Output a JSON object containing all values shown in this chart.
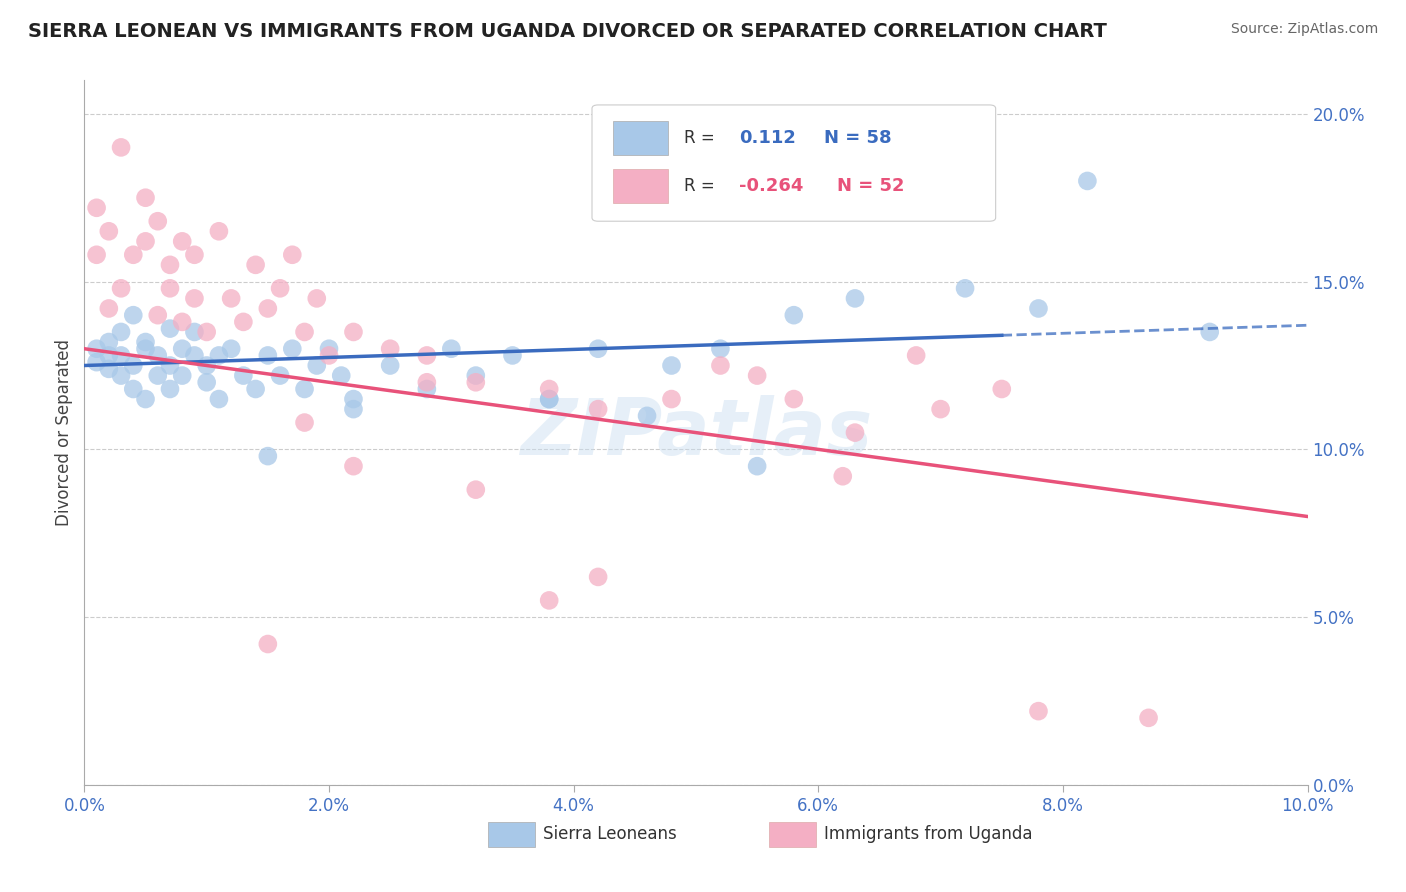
{
  "title": "SIERRA LEONEAN VS IMMIGRANTS FROM UGANDA DIVORCED OR SEPARATED CORRELATION CHART",
  "source": "Source: ZipAtlas.com",
  "ylabel": "Divorced or Separated",
  "xlim": [
    0.0,
    0.1
  ],
  "ylim": [
    0.0,
    0.21
  ],
  "xticks": [
    0.0,
    0.02,
    0.04,
    0.06,
    0.08,
    0.1
  ],
  "yticks": [
    0.0,
    0.05,
    0.1,
    0.15,
    0.2
  ],
  "legend_r_blue": "0.112",
  "legend_n_blue": "58",
  "legend_r_pink": "-0.264",
  "legend_n_pink": "52",
  "blue_color": "#a8c8e8",
  "pink_color": "#f4afc4",
  "blue_line_color": "#3a6bbf",
  "pink_line_color": "#e8527a",
  "grid_color": "#cccccc",
  "background_color": "#ffffff",
  "watermark": "ZIPatlas",
  "blue_dots_x": [
    0.001,
    0.001,
    0.002,
    0.002,
    0.002,
    0.003,
    0.003,
    0.003,
    0.004,
    0.004,
    0.004,
    0.005,
    0.005,
    0.005,
    0.006,
    0.006,
    0.007,
    0.007,
    0.007,
    0.008,
    0.008,
    0.009,
    0.009,
    0.01,
    0.01,
    0.011,
    0.011,
    0.012,
    0.013,
    0.014,
    0.015,
    0.016,
    0.017,
    0.018,
    0.019,
    0.02,
    0.021,
    0.022,
    0.025,
    0.028,
    0.032,
    0.035,
    0.038,
    0.042,
    0.048,
    0.052,
    0.058,
    0.063,
    0.072,
    0.078,
    0.082,
    0.015,
    0.022,
    0.03,
    0.038,
    0.046,
    0.055,
    0.092
  ],
  "blue_dots_y": [
    0.13,
    0.126,
    0.128,
    0.132,
    0.124,
    0.135,
    0.122,
    0.128,
    0.14,
    0.118,
    0.125,
    0.13,
    0.115,
    0.132,
    0.128,
    0.122,
    0.136,
    0.118,
    0.125,
    0.13,
    0.122,
    0.128,
    0.135,
    0.125,
    0.12,
    0.128,
    0.115,
    0.13,
    0.122,
    0.118,
    0.128,
    0.122,
    0.13,
    0.118,
    0.125,
    0.13,
    0.122,
    0.115,
    0.125,
    0.118,
    0.122,
    0.128,
    0.115,
    0.13,
    0.125,
    0.13,
    0.14,
    0.145,
    0.148,
    0.142,
    0.18,
    0.098,
    0.112,
    0.13,
    0.115,
    0.11,
    0.095,
    0.135
  ],
  "pink_dots_x": [
    0.001,
    0.001,
    0.002,
    0.002,
    0.003,
    0.003,
    0.004,
    0.005,
    0.005,
    0.006,
    0.006,
    0.007,
    0.007,
    0.008,
    0.008,
    0.009,
    0.009,
    0.01,
    0.011,
    0.012,
    0.013,
    0.014,
    0.015,
    0.016,
    0.017,
    0.018,
    0.019,
    0.02,
    0.022,
    0.025,
    0.028,
    0.032,
    0.038,
    0.042,
    0.048,
    0.052,
    0.058,
    0.063,
    0.07,
    0.075,
    0.015,
    0.022,
    0.032,
    0.042,
    0.028,
    0.038,
    0.018,
    0.055,
    0.062,
    0.068,
    0.078,
    0.087
  ],
  "pink_dots_y": [
    0.172,
    0.158,
    0.165,
    0.142,
    0.19,
    0.148,
    0.158,
    0.175,
    0.162,
    0.14,
    0.168,
    0.155,
    0.148,
    0.162,
    0.138,
    0.145,
    0.158,
    0.135,
    0.165,
    0.145,
    0.138,
    0.155,
    0.142,
    0.148,
    0.158,
    0.135,
    0.145,
    0.128,
    0.135,
    0.13,
    0.128,
    0.12,
    0.118,
    0.112,
    0.115,
    0.125,
    0.115,
    0.105,
    0.112,
    0.118,
    0.042,
    0.095,
    0.088,
    0.062,
    0.12,
    0.055,
    0.108,
    0.122,
    0.092,
    0.128,
    0.022,
    0.02
  ]
}
